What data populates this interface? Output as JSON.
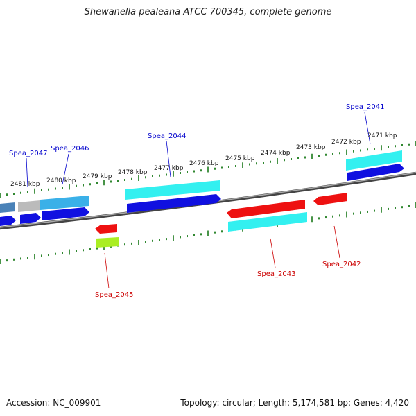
{
  "title": "Shewanella pealeana ATCC 700345, complete genome",
  "footer": {
    "accession": "Accession: NC_009901",
    "summary": "Topology: circular; Length: 5,174,581 bp; Genes: 4,420"
  },
  "ticks": [
    "2481 kbp",
    "2480 kbp",
    "2479 kbp",
    "2478 kbp",
    "2477 kbp",
    "2476 kbp",
    "2475 kbp",
    "2474 kbp",
    "2473 kbp",
    "2472 kbp",
    "2471 kbp"
  ],
  "genes_top": [
    {
      "name": "Spea_2047",
      "color": "#0000cc"
    },
    {
      "name": "Spea_2046",
      "color": "#0000cc"
    },
    {
      "name": "Spea_2044",
      "color": "#0000cc"
    },
    {
      "name": "Spea_2041",
      "color": "#0000cc"
    }
  ],
  "genes_bottom": [
    {
      "name": "Spea_2045",
      "color": "#cc0000"
    },
    {
      "name": "Spea_2043",
      "color": "#cc0000"
    },
    {
      "name": "Spea_2042",
      "color": "#cc0000"
    }
  ],
  "colors": {
    "backbone": "#777777",
    "tick": "#1a7a1a",
    "forward_cds": "#1010e0",
    "reverse_cds": "#ee1111",
    "feature_cyan": "#33f0f0",
    "feature_grey": "#bbbbbb",
    "feature_steel": "#4a82b8",
    "feature_lime": "#aaee22"
  }
}
